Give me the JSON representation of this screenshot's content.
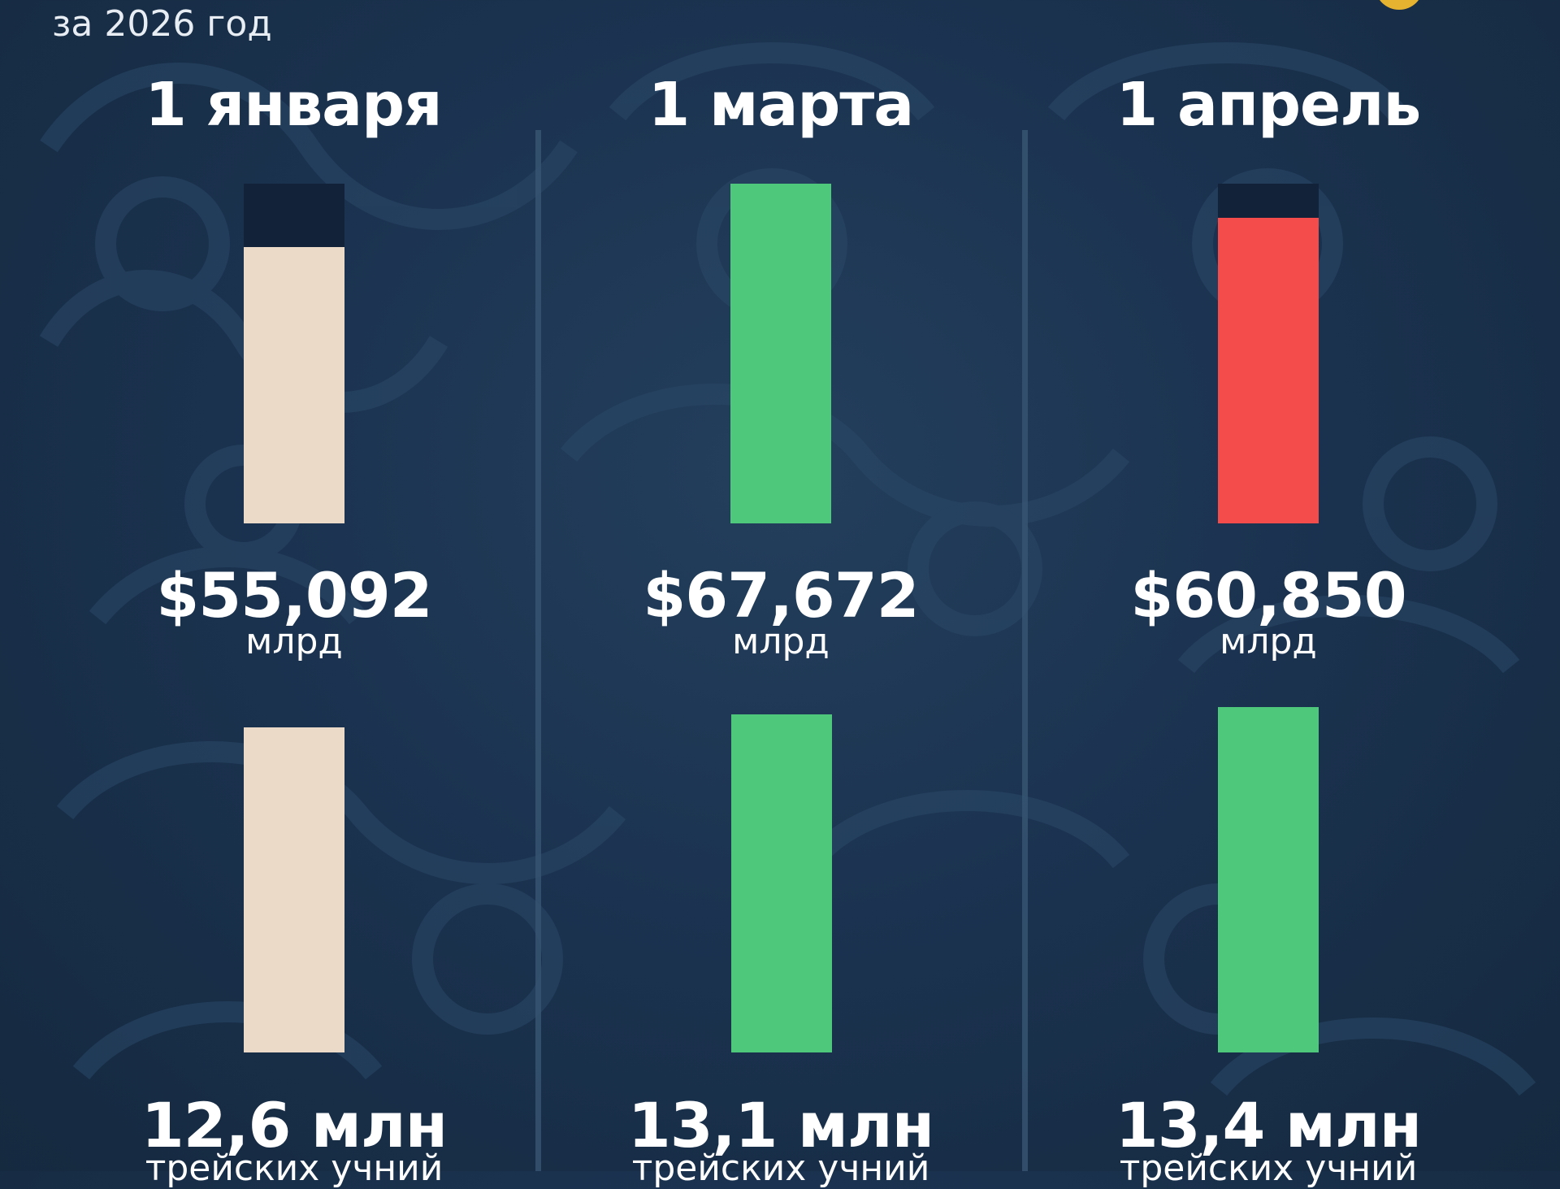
{
  "header": {
    "subtitle": "за 2026 год"
  },
  "colors": {
    "background": "#1b3350",
    "track": "#122339",
    "baseline": "#ebdac7",
    "increase": "#4ec87a",
    "decrease": "#f44b4b",
    "badge": "#e6b330"
  },
  "chart_data": [
    {
      "type": "bar",
      "categories": [
        "1 января",
        "1 марта",
        "1 апрель"
      ],
      "values": [
        55.092,
        67.672,
        60.85
      ],
      "value_labels": [
        "$55,092",
        "$67,672",
        "$60,850"
      ],
      "unit": "млрд",
      "ylim": [
        0,
        67.672
      ],
      "bar_colors": [
        "#ebdac7",
        "#4ec87a",
        "#f44b4b"
      ],
      "title": "",
      "xlabel": "",
      "ylabel": ""
    },
    {
      "type": "bar",
      "categories": [
        "1 января",
        "1 марта",
        "1 апрель"
      ],
      "values": [
        12.6,
        13.1,
        13.4
      ],
      "value_labels": [
        "12,6 млн",
        "13,1 млн",
        "13,4 млн"
      ],
      "caption": "трейских учний",
      "bar_colors": [
        "#ebdac7",
        "#4ec87a",
        "#4ec87a"
      ],
      "title": "",
      "xlabel": "",
      "ylabel": ""
    }
  ]
}
